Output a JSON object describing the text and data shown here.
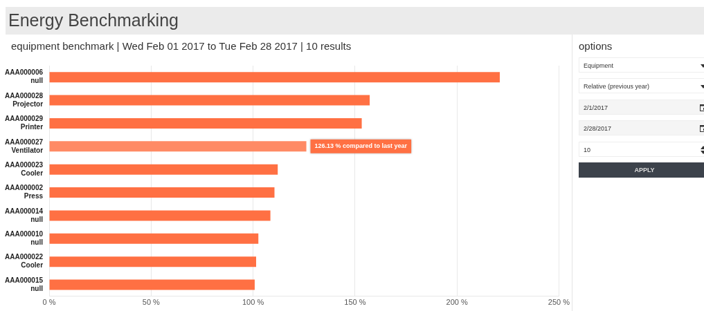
{
  "chart_data": {
    "type": "bar",
    "orientation": "horizontal",
    "title": "Energy Benchmarking",
    "subtitle": "equipment benchmark | Wed Feb 01 2017 to Tue Feb 28 2017 | 10 results",
    "categories": [
      "AAA000006\nnull",
      "AAA000028\nProjector",
      "AAA000029\nPrinter",
      "AAA000027\nVentilator",
      "AAA000023\nCooler",
      "AAA000002\nPress",
      "AAA000014\nnull",
      "AAA000010\nnull",
      "AAA000022\nCooler",
      "AAA000015\nnull"
    ],
    "values": [
      221,
      157.2,
      153.3,
      126.13,
      112.1,
      110.5,
      108.5,
      102.6,
      101.5,
      100.8
    ],
    "colors": [
      "#ff7043",
      "#ff7043",
      "#ff7043",
      "#ff8a65",
      "#ff7043",
      "#ff7043",
      "#ff7043",
      "#ff7043",
      "#ff7043",
      "#ff7043"
    ],
    "xlim": [
      0,
      250
    ],
    "xticks": [
      {
        "value": 0,
        "label": "0 %"
      },
      {
        "value": 50,
        "label": "50 %"
      },
      {
        "value": 100,
        "label": "100 %"
      },
      {
        "value": 150,
        "label": "150 %"
      },
      {
        "value": 200,
        "label": "200 %"
      },
      {
        "value": 250,
        "label": "250 %"
      }
    ],
    "grid": "x",
    "annotations": [
      {
        "text": "126.13 % compared to last year",
        "x": 126.13,
        "y": "AAA000027\nVentilator"
      },
      "options",
      "Equipment",
      "Relative (previous year)",
      "2/1/2017",
      "2/28/2017",
      "10",
      "APPLY"
    ]
  }
}
